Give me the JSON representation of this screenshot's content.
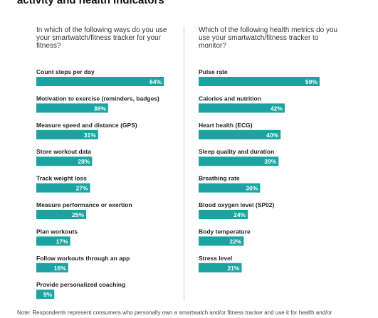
{
  "title": "activity and health indicators",
  "footnote": "Note: Respondents represent consumers who personally own a smartwatch and/or fitness tracker and use it for health and/or",
  "colors": {
    "bar": "#1aa3a0",
    "label": "#ffffff",
    "divider": "#cfcfcf"
  },
  "chart_data": [
    {
      "type": "bar",
      "orientation": "horizontal",
      "question": "In which of the following ways do you use your smartwatch/fitness tracker for your fitness?",
      "categories": [
        "Count steps per day",
        "Motivation to exercise (reminders, badges)",
        "Measure speed and distance (GPS)",
        "Store workout data",
        "Track weight loss",
        "Measure performance or exertion",
        "Plan workouts",
        "Follow workouts through an app",
        "Provide personalized coaching"
      ],
      "values": [
        64,
        36,
        31,
        28,
        27,
        25,
        17,
        16,
        9
      ],
      "value_labels": [
        "64%",
        "36%",
        "31%",
        "28%",
        "27%",
        "25%",
        "17%",
        "16%",
        "9%"
      ],
      "unit": "%"
    },
    {
      "type": "bar",
      "orientation": "horizontal",
      "question": "Which of the following health metrics do you use your smartwatch/fitness tracker to monitor?",
      "categories": [
        "Pulse rate",
        "Calories and nutrition",
        "Heart health (ECG)",
        "Sleep quality and duration",
        "Breathing rate",
        "Blood oxygen level (SP02)",
        "Body temperature",
        "Stress level"
      ],
      "values": [
        59,
        42,
        40,
        39,
        30,
        24,
        22,
        21
      ],
      "value_labels": [
        "59%",
        "42%",
        "40%",
        "39%",
        "30%",
        "24%",
        "22%",
        "21%"
      ],
      "unit": "%"
    }
  ]
}
